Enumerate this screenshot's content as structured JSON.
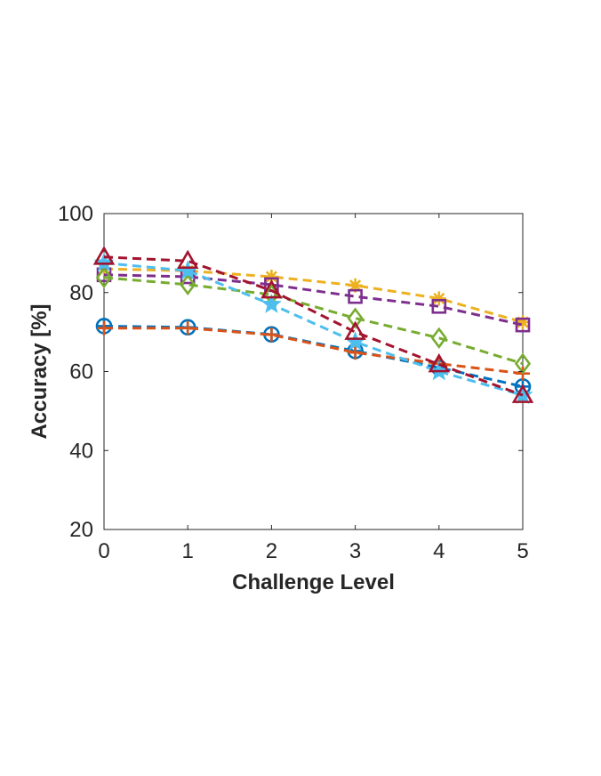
{
  "chart_data": {
    "type": "line",
    "title": "",
    "xlabel": "Challenge Level",
    "ylabel": "Accuracy [%]",
    "x": [
      0,
      1,
      2,
      3,
      4,
      5
    ],
    "xlim": [
      0,
      5
    ],
    "ylim": [
      20,
      100
    ],
    "x_ticks": [
      "0",
      "1",
      "2",
      "3",
      "4",
      "5"
    ],
    "y_ticks": [
      "20",
      "40",
      "60",
      "80",
      "100"
    ],
    "grid": false,
    "legend": "none",
    "line_style": "dashed",
    "series": [
      {
        "marker": "circle-plus",
        "color": "#0072BD",
        "values": [
          71.5,
          71.2,
          69.4,
          65.2,
          61.0,
          56.2
        ]
      },
      {
        "marker": "plus",
        "color": "#D95319",
        "values": [
          71.0,
          71.0,
          69.3,
          64.8,
          62.0,
          59.5
        ]
      },
      {
        "marker": "asterisk",
        "color": "#EDB120",
        "values": [
          86.0,
          85.5,
          84.0,
          81.8,
          78.5,
          72.5
        ]
      },
      {
        "marker": "square",
        "color": "#7E2F8E",
        "values": [
          84.5,
          84.0,
          82.0,
          79.0,
          76.5,
          71.8
        ]
      },
      {
        "marker": "diamond",
        "color": "#77AC30",
        "values": [
          83.8,
          82.0,
          79.5,
          73.5,
          68.5,
          62.0
        ]
      },
      {
        "marker": "pentagram",
        "color": "#4DBEEE",
        "values": [
          87.5,
          85.5,
          77.0,
          67.5,
          60.0,
          54.0
        ]
      },
      {
        "marker": "triangle",
        "color": "#A2142F",
        "values": [
          89.0,
          88.0,
          80.5,
          70.0,
          61.8,
          54.0
        ]
      }
    ]
  }
}
